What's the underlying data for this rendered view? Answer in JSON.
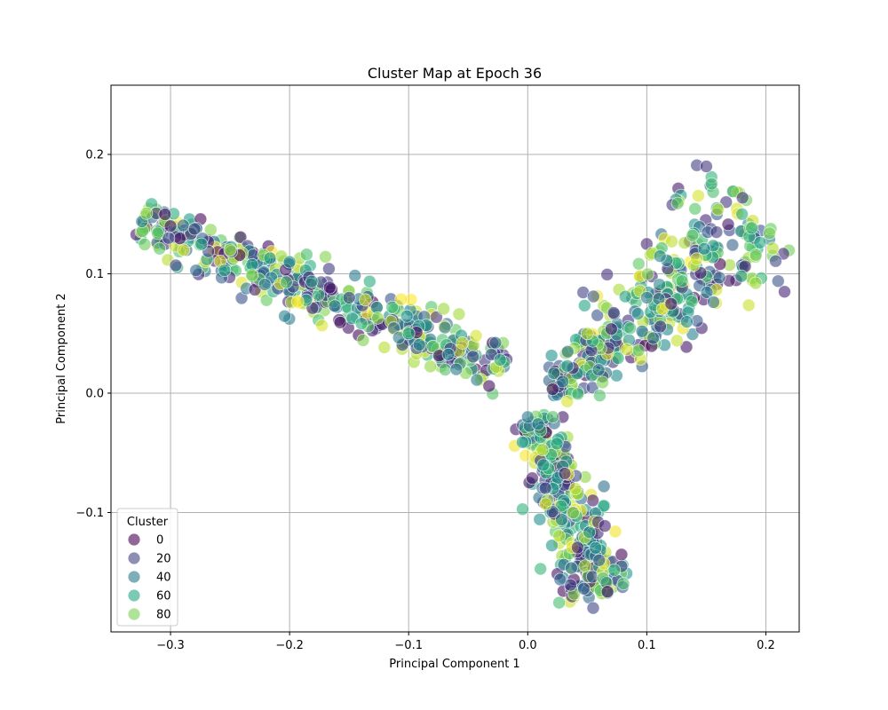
{
  "chart_data": {
    "type": "scatter",
    "title": "Cluster Map at Epoch 36",
    "xlabel": "Principal Component 1",
    "ylabel": "Principal Component 2",
    "xlim": [
      -0.35,
      0.228
    ],
    "ylim": [
      -0.2,
      0.258
    ],
    "xticks": [
      -0.3,
      -0.2,
      -0.1,
      0.0,
      0.1,
      0.2
    ],
    "xtick_labels": [
      "−0.3",
      "−0.2",
      "−0.1",
      "0.0",
      "0.1",
      "0.2"
    ],
    "yticks": [
      -0.1,
      0.0,
      0.1,
      0.2
    ],
    "ytick_labels": [
      "−0.1",
      "0.0",
      "0.1",
      "0.2"
    ],
    "grid": true,
    "colormap": "viridis",
    "color_range": [
      0,
      99
    ],
    "legend": {
      "title": "Cluster",
      "location": "lower-left",
      "entries": [
        {
          "label": "0",
          "value": 0,
          "color": "#440154"
        },
        {
          "label": "20",
          "value": 20,
          "color": "#414487"
        },
        {
          "label": "40",
          "value": 40,
          "color": "#2a788e"
        },
        {
          "label": "60",
          "value": 60,
          "color": "#22a884"
        },
        {
          "label": "80",
          "value": 80,
          "color": "#7ad151"
        }
      ]
    },
    "point_style": {
      "alpha": 0.6,
      "edgecolor": "#ffffff"
    },
    "arms": [
      {
        "name": "left-arm",
        "start": [
          -0.325,
          0.145
        ],
        "end": [
          -0.02,
          0.02
        ],
        "width_start": 0.022,
        "width_end": 0.028,
        "count": 420
      },
      {
        "name": "right-upper-arm",
        "start": [
          0.02,
          0.0
        ],
        "end": [
          0.195,
          0.15
        ],
        "width_start": 0.02,
        "width_end": 0.07,
        "count": 380
      },
      {
        "name": "lower-arm",
        "start": [
          0.005,
          -0.02
        ],
        "end": [
          0.06,
          -0.17
        ],
        "width_start": 0.02,
        "width_end": 0.035,
        "count": 300
      }
    ],
    "representative_points": [
      {
        "x": -0.3,
        "y": 0.14,
        "c": 5
      },
      {
        "x": -0.25,
        "y": 0.12,
        "c": 85
      },
      {
        "x": -0.2,
        "y": 0.11,
        "c": 45
      },
      {
        "x": -0.15,
        "y": 0.08,
        "c": 20
      },
      {
        "x": -0.1,
        "y": 0.05,
        "c": 60
      },
      {
        "x": -0.06,
        "y": 0.02,
        "c": 40
      },
      {
        "x": 0.0,
        "y": -0.02,
        "c": 40
      },
      {
        "x": 0.05,
        "y": 0.05,
        "c": 85
      },
      {
        "x": 0.1,
        "y": 0.08,
        "c": 40
      },
      {
        "x": 0.15,
        "y": 0.19,
        "c": 15
      },
      {
        "x": 0.18,
        "y": 0.15,
        "c": 60
      },
      {
        "x": 0.04,
        "y": -0.08,
        "c": 90
      },
      {
        "x": 0.06,
        "y": -0.14,
        "c": 30
      },
      {
        "x": 0.055,
        "y": -0.18,
        "c": 20
      }
    ]
  }
}
